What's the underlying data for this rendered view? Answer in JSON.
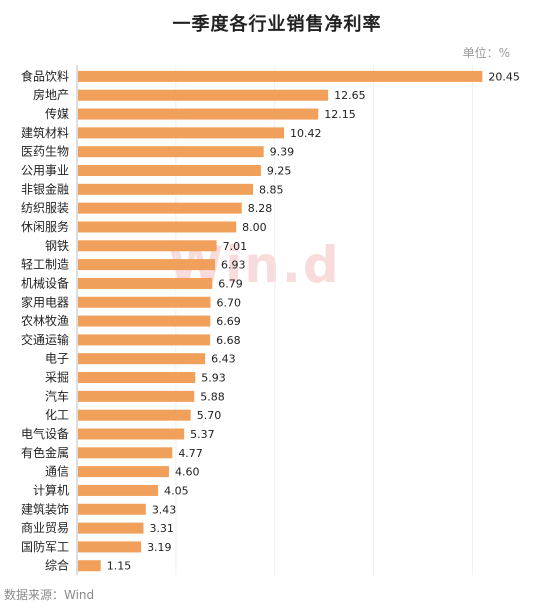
{
  "chart_data": {
    "type": "bar",
    "orientation": "horizontal",
    "title": "一季度各行业销售净利率",
    "unit_label": "单位：%",
    "source": "数据来源：Wind",
    "watermark": "Win.d",
    "bar_color": "#f0a05a",
    "xlim": [
      0,
      22
    ],
    "grid": false,
    "categories": [
      "食品饮料",
      "房地产",
      "传媒",
      "建筑材料",
      "医药生物",
      "公用事业",
      "非银金融",
      "纺织服装",
      "休闲服务",
      "钢铁",
      "轻工制造",
      "机械设备",
      "家用电器",
      "农林牧渔",
      "交通运输",
      "电子",
      "采掘",
      "汽车",
      "化工",
      "电气设备",
      "有色金属",
      "通信",
      "计算机",
      "建筑装饰",
      "商业贸易",
      "国防军工",
      "综合"
    ],
    "values": [
      20.45,
      12.65,
      12.15,
      10.42,
      9.39,
      9.25,
      8.85,
      8.28,
      8.0,
      7.01,
      6.93,
      6.79,
      6.7,
      6.69,
      6.68,
      6.43,
      5.93,
      5.88,
      5.7,
      5.37,
      4.77,
      4.6,
      4.05,
      3.43,
      3.31,
      3.19,
      1.15
    ],
    "value_labels": [
      "20.45",
      "12.65",
      "12.15",
      "10.42",
      "9.39",
      "9.25",
      "8.85",
      "8.28",
      "8.00",
      "7.01",
      "6.93",
      "6.79",
      "6.70",
      "6.69",
      "6.68",
      "6.43",
      "5.93",
      "5.88",
      "5.70",
      "5.37",
      "4.77",
      "4.60",
      "4.05",
      "3.43",
      "3.31",
      "3.19",
      "1.15"
    ]
  }
}
